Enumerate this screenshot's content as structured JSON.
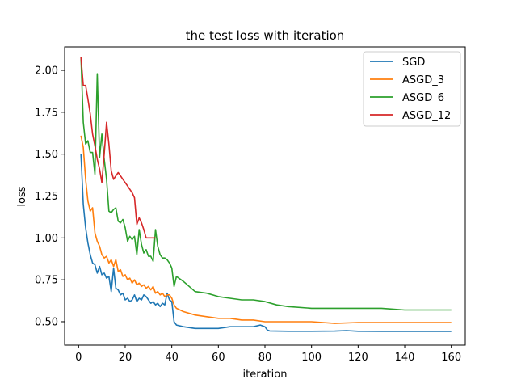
{
  "chart_data": {
    "type": "line",
    "title": "the test loss with iteration",
    "xlabel": "iteration",
    "ylabel": "loss",
    "xlim": [
      -6,
      166
    ],
    "ylim": [
      0.36,
      2.14
    ],
    "xticks": [
      0,
      20,
      40,
      60,
      80,
      100,
      120,
      140,
      160
    ],
    "yticks": [
      0.5,
      0.75,
      1.0,
      1.25,
      1.5,
      1.75,
      2.0
    ],
    "ytick_labels": [
      "0.50",
      "0.75",
      "1.00",
      "1.25",
      "1.50",
      "1.75",
      "2.00"
    ],
    "grid": false,
    "legend_position": "top-right",
    "series": [
      {
        "name": "SGD",
        "color": "#1f77b4",
        "x": [
          1,
          2,
          3,
          4,
          5,
          6,
          7,
          8,
          9,
          10,
          11,
          12,
          13,
          14,
          15,
          16,
          17,
          18,
          19,
          20,
          21,
          22,
          23,
          24,
          25,
          26,
          27,
          28,
          29,
          30,
          31,
          32,
          33,
          34,
          35,
          36,
          37,
          38,
          39,
          40,
          41,
          42,
          45,
          50,
          55,
          60,
          65,
          70,
          75,
          78,
          80,
          81,
          82,
          90,
          100,
          110,
          115,
          120,
          130,
          140,
          150,
          160
        ],
        "y": [
          1.5,
          1.2,
          1.06,
          0.97,
          0.9,
          0.85,
          0.84,
          0.79,
          0.83,
          0.78,
          0.79,
          0.76,
          0.77,
          0.68,
          0.82,
          0.7,
          0.69,
          0.66,
          0.67,
          0.63,
          0.64,
          0.62,
          0.63,
          0.66,
          0.62,
          0.64,
          0.63,
          0.66,
          0.65,
          0.63,
          0.61,
          0.62,
          0.6,
          0.61,
          0.59,
          0.61,
          0.6,
          0.67,
          0.63,
          0.62,
          0.5,
          0.48,
          0.47,
          0.46,
          0.46,
          0.46,
          0.47,
          0.47,
          0.47,
          0.48,
          0.47,
          0.45,
          0.445,
          0.443,
          0.443,
          0.444,
          0.447,
          0.443,
          0.442,
          0.442,
          0.442,
          0.442
        ]
      },
      {
        "name": "ASGD_3",
        "color": "#ff7f0e",
        "x": [
          1,
          2,
          3,
          4,
          5,
          6,
          7,
          8,
          9,
          10,
          11,
          12,
          13,
          14,
          15,
          16,
          17,
          18,
          19,
          20,
          21,
          22,
          23,
          24,
          25,
          26,
          27,
          28,
          29,
          30,
          31,
          32,
          33,
          34,
          35,
          36,
          37,
          38,
          39,
          40,
          41,
          42,
          45,
          50,
          55,
          60,
          65,
          70,
          75,
          80,
          85,
          90,
          100,
          110,
          120,
          130,
          140,
          150,
          160
        ],
        "y": [
          1.61,
          1.54,
          1.35,
          1.22,
          1.16,
          1.18,
          1.03,
          0.98,
          0.95,
          0.9,
          0.88,
          0.89,
          0.85,
          0.87,
          0.83,
          0.87,
          0.8,
          0.81,
          0.77,
          0.78,
          0.75,
          0.76,
          0.73,
          0.75,
          0.72,
          0.73,
          0.71,
          0.72,
          0.7,
          0.71,
          0.69,
          0.71,
          0.67,
          0.68,
          0.66,
          0.67,
          0.65,
          0.66,
          0.66,
          0.64,
          0.6,
          0.58,
          0.56,
          0.54,
          0.53,
          0.52,
          0.52,
          0.51,
          0.51,
          0.5,
          0.5,
          0.5,
          0.5,
          0.49,
          0.495,
          0.495,
          0.495,
          0.495,
          0.495
        ]
      },
      {
        "name": "ASGD_6",
        "color": "#2ca02c",
        "x": [
          1,
          2,
          3,
          4,
          5,
          6,
          7,
          8,
          9,
          10,
          11,
          12,
          13,
          14,
          15,
          16,
          17,
          18,
          19,
          20,
          21,
          22,
          23,
          24,
          25,
          26,
          27,
          28,
          29,
          30,
          31,
          32,
          33,
          34,
          35,
          36,
          37,
          38,
          39,
          40,
          41,
          42,
          45,
          50,
          55,
          60,
          65,
          70,
          75,
          80,
          85,
          90,
          100,
          110,
          120,
          130,
          140,
          150,
          160
        ],
        "y": [
          2.08,
          1.69,
          1.56,
          1.58,
          1.51,
          1.51,
          1.38,
          1.98,
          1.48,
          1.62,
          1.47,
          1.35,
          1.16,
          1.15,
          1.17,
          1.18,
          1.1,
          1.09,
          1.11,
          1.06,
          0.98,
          1.01,
          0.99,
          1.01,
          0.9,
          1.05,
          0.96,
          0.91,
          0.93,
          0.89,
          0.89,
          0.86,
          1.05,
          0.95,
          0.9,
          0.88,
          0.88,
          0.87,
          0.85,
          0.82,
          0.71,
          0.77,
          0.74,
          0.68,
          0.67,
          0.65,
          0.64,
          0.63,
          0.63,
          0.62,
          0.6,
          0.59,
          0.58,
          0.58,
          0.58,
          0.58,
          0.57,
          0.57,
          0.57
        ]
      },
      {
        "name": "ASGD_12",
        "color": "#d62728",
        "x": [
          1,
          2,
          3,
          4,
          5,
          6,
          7,
          8,
          9,
          10,
          11,
          12,
          13,
          14,
          15,
          16,
          17,
          18,
          19,
          20,
          21,
          22,
          23,
          24,
          25,
          26,
          27,
          28,
          29,
          30,
          31,
          32,
          33
        ],
        "y": [
          2.08,
          1.91,
          1.91,
          1.83,
          1.74,
          1.62,
          1.55,
          1.47,
          1.41,
          1.33,
          1.5,
          1.69,
          1.56,
          1.4,
          1.35,
          1.37,
          1.39,
          1.37,
          1.35,
          1.33,
          1.31,
          1.29,
          1.27,
          1.24,
          1.08,
          1.12,
          1.09,
          1.05,
          1.0,
          1.0,
          1.0,
          1.0,
          1.0
        ]
      }
    ]
  }
}
